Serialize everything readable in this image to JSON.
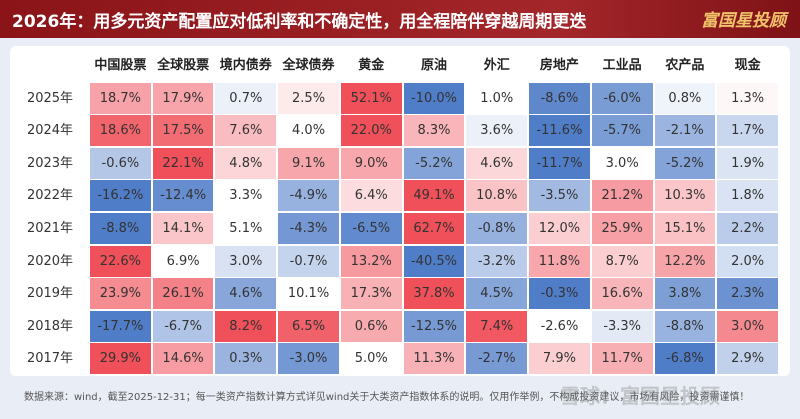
{
  "header": {
    "title": "2026年：用多元资产配置应对低利率和不确定性，用全程陪伴穿越周期更迭",
    "logo": "富国星投顾"
  },
  "table": {
    "columns": [
      "中国股票",
      "全球股票",
      "境内债券",
      "全球债券",
      "黄金",
      "原油",
      "外汇",
      "房地产",
      "工业品",
      "农产品",
      "现金"
    ],
    "rows": [
      {
        "year": "2025年",
        "cells": [
          "18.7%",
          "17.9%",
          "0.7%",
          "2.5%",
          "52.1%",
          "-10.0%",
          "1.0%",
          "-8.6%",
          "-6.0%",
          "0.8%",
          "1.3%"
        ]
      },
      {
        "year": "2024年",
        "cells": [
          "18.6%",
          "17.5%",
          "7.6%",
          "4.0%",
          "22.0%",
          "8.3%",
          "3.6%",
          "-11.6%",
          "-5.7%",
          "-2.1%",
          "1.7%"
        ]
      },
      {
        "year": "2023年",
        "cells": [
          "-0.6%",
          "22.1%",
          "4.8%",
          "9.1%",
          "9.0%",
          "-5.2%",
          "4.6%",
          "-11.7%",
          "3.0%",
          "-5.2%",
          "1.9%"
        ]
      },
      {
        "year": "2022年",
        "cells": [
          "-16.2%",
          "-12.4%",
          "3.3%",
          "-4.9%",
          "6.4%",
          "49.1%",
          "10.8%",
          "-3.5%",
          "21.2%",
          "10.3%",
          "1.8%"
        ]
      },
      {
        "year": "2021年",
        "cells": [
          "-8.8%",
          "14.1%",
          "5.1%",
          "-4.3%",
          "-6.5%",
          "62.7%",
          "-0.8%",
          "12.0%",
          "25.9%",
          "15.1%",
          "2.2%"
        ]
      },
      {
        "year": "2020年",
        "cells": [
          "22.6%",
          "6.9%",
          "3.0%",
          "-0.7%",
          "13.2%",
          "-40.5%",
          "-3.2%",
          "11.8%",
          "8.7%",
          "12.2%",
          "2.0%"
        ]
      },
      {
        "year": "2019年",
        "cells": [
          "23.9%",
          "26.1%",
          "4.6%",
          "10.1%",
          "17.3%",
          "37.8%",
          "4.5%",
          "-0.3%",
          "16.6%",
          "3.8%",
          "2.3%"
        ]
      },
      {
        "year": "2018年",
        "cells": [
          "-17.7%",
          "-6.7%",
          "8.2%",
          "6.5%",
          "0.6%",
          "-12.5%",
          "7.4%",
          "-2.6%",
          "-3.3%",
          "-8.8%",
          "3.0%"
        ]
      },
      {
        "year": "2017年",
        "cells": [
          "29.9%",
          "14.6%",
          "0.3%",
          "-3.0%",
          "5.0%",
          "11.3%",
          "-2.7%",
          "7.9%",
          "11.7%",
          "-6.8%",
          "2.9%"
        ]
      }
    ]
  },
  "footer": {
    "note": "数据来源：wind，截至2025-12-31；每一类资产指数计算方式详见wind关于大类资产指数体系的说明。仅用作举例，不构成投资建议，市场有风险，投资需谨慎！",
    "watermark": "雪球：富国星投顾"
  }
}
